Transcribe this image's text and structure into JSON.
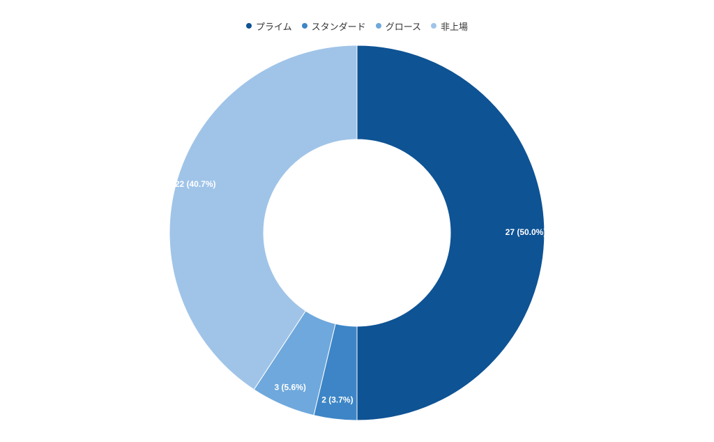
{
  "chart_data": {
    "type": "pie",
    "variant": "donut",
    "title": "",
    "legend_position": "top-center",
    "categories": [
      "プライム",
      "スタンダード",
      "グロース",
      "非上場"
    ],
    "values": [
      27,
      2,
      3,
      22
    ],
    "labels": [
      "27 (50.0%)",
      "2 (3.7%)",
      "3 (5.6%)",
      "22 (40.7%)"
    ],
    "colors": [
      "#0e5394",
      "#3d85c6",
      "#6fa8dc",
      "#a0c4e8"
    ],
    "start_angle_deg": 0,
    "direction": "clockwise"
  }
}
